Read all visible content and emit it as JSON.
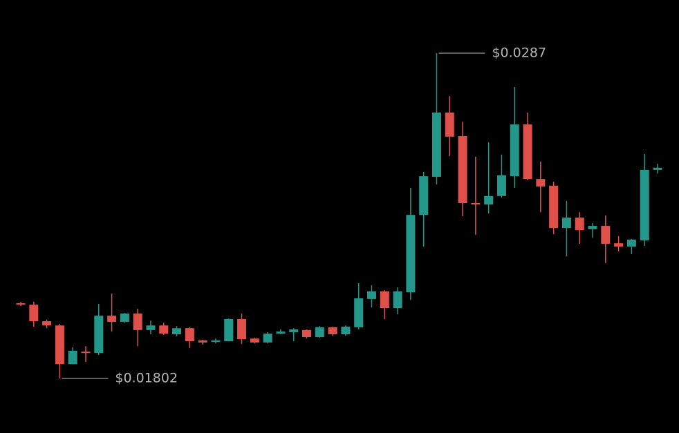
{
  "chart_data": {
    "type": "candlestick",
    "up_color": "#22978a",
    "down_color": "#e0504b",
    "open": [
      0.02049,
      0.02044,
      0.0199,
      0.01976,
      0.01849,
      0.0189,
      0.01886,
      0.02008,
      0.01988,
      0.02015,
      0.01961,
      0.01976,
      0.01947,
      0.01967,
      0.01927,
      0.01922,
      0.01924,
      0.01997,
      0.01933,
      0.0192,
      0.01949,
      0.01954,
      0.01961,
      0.01938,
      0.0197,
      0.01947,
      0.0197,
      0.02063,
      0.02088,
      0.02033,
      0.02085,
      0.02339,
      0.02464,
      0.02675,
      0.02598,
      0.02378,
      0.02373,
      0.02401,
      0.02466,
      0.02636,
      0.02457,
      0.02435,
      0.02296,
      0.0233,
      0.02292,
      0.02303,
      0.02246,
      0.02235,
      0.02255,
      0.02487
    ],
    "high": [
      0.02054,
      0.02054,
      0.01995,
      0.01981,
      0.01904,
      0.01908,
      0.02047,
      0.02081,
      0.02017,
      0.02031,
      0.01992,
      0.01985,
      0.01974,
      0.0197,
      0.01929,
      0.01933,
      0.01999,
      0.02015,
      0.01936,
      0.01954,
      0.01963,
      0.01967,
      0.01963,
      0.01974,
      0.01972,
      0.01976,
      0.02115,
      0.02108,
      0.02092,
      0.02101,
      0.02428,
      0.0248,
      0.0287,
      0.02729,
      0.02645,
      0.0253,
      0.02577,
      0.02537,
      0.02759,
      0.02675,
      0.02514,
      0.02448,
      0.02385,
      0.02348,
      0.02312,
      0.02337,
      0.02269,
      0.0226,
      0.02539,
      0.02507
    ],
    "low": [
      0.0204,
      0.01972,
      0.01967,
      0.01802,
      0.01849,
      0.01856,
      0.01879,
      0.01956,
      0.01985,
      0.01908,
      0.01947,
      0.01945,
      0.0194,
      0.01902,
      0.01913,
      0.01917,
      0.01924,
      0.01915,
      0.01917,
      0.01917,
      0.01947,
      0.01924,
      0.01933,
      0.01936,
      0.01942,
      0.01942,
      0.01963,
      0.02035,
      0.01997,
      0.02013,
      0.0206,
      0.02235,
      0.02439,
      0.02532,
      0.02335,
      0.02274,
      0.02344,
      0.02396,
      0.02428,
      0.02453,
      0.02348,
      0.02276,
      0.02203,
      0.02244,
      0.02264,
      0.02181,
      0.02219,
      0.0221,
      0.02237,
      0.02475
    ],
    "close": [
      0.02044,
      0.0199,
      0.01976,
      0.01849,
      0.01893,
      0.01888,
      0.02008,
      0.01988,
      0.02015,
      0.01961,
      0.01976,
      0.01949,
      0.01967,
      0.01924,
      0.0192,
      0.01927,
      0.01997,
      0.01931,
      0.0192,
      0.01949,
      0.01956,
      0.01963,
      0.01938,
      0.0197,
      0.01947,
      0.01972,
      0.02065,
      0.02088,
      0.02033,
      0.02088,
      0.02339,
      0.02466,
      0.02675,
      0.02596,
      0.02378,
      0.02373,
      0.02401,
      0.02469,
      0.02636,
      0.02457,
      0.02432,
      0.02296,
      0.0233,
      0.02289,
      0.02303,
      0.02244,
      0.02235,
      0.02258,
      0.02487,
      0.02494
    ],
    "annotations": [
      {
        "label": "$0.0287",
        "value": 0.0287
      },
      {
        "label": "$0.01802",
        "value": 0.01802
      }
    ]
  }
}
